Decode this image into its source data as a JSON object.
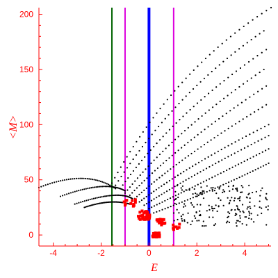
{
  "chart_data": {
    "type": "scatter",
    "xlabel": "E",
    "ylabel": "<M>",
    "xlim": [
      -4.6,
      5.1
    ],
    "ylim": [
      -10,
      206
    ],
    "grid": false,
    "x_ticks": [
      -4,
      -2,
      0,
      2,
      4
    ],
    "x_tick_labels": [
      "-4",
      "-2",
      "0",
      "2",
      "4"
    ],
    "y_ticks": [
      0,
      50,
      100,
      150,
      200
    ],
    "y_tick_labels": [
      "0",
      "50",
      "100",
      "150",
      "200"
    ],
    "vertical_lines": [
      {
        "x": -1.55,
        "color": "#006400",
        "width": 2
      },
      {
        "x": -1.0,
        "color": "#dd00dd",
        "width": 2
      },
      {
        "x": 0.0,
        "color": "#0000ff",
        "width": 4
      },
      {
        "x": 1.03,
        "color": "#dd00dd",
        "width": 2
      }
    ],
    "series": [
      {
        "color": "#000000",
        "point_size": 1.1,
        "curves": [
          {
            "start": [
              -4.6,
              43
            ],
            "mid": [
              -2.6,
              60
            ],
            "end": [
              -1.4,
              42
            ]
          },
          {
            "start": [
              -3.7,
              35
            ],
            "mid": [
              -1.8,
              50
            ],
            "end": [
              -1.0,
              40
            ]
          },
          {
            "start": [
              -3.1,
              28
            ],
            "mid": [
              -1.3,
              41
            ],
            "end": [
              -0.7,
              33
            ]
          },
          {
            "start": [
              -2.7,
              25
            ],
            "mid": [
              -1.6,
              33
            ],
            "end": [
              -0.8,
              28
            ]
          },
          {
            "start": [
              -1.55,
              47
            ],
            "mid": [
              1.0,
              150
            ],
            "end": [
              5.1,
              206
            ]
          },
          {
            "start": [
              -1.4,
              45
            ],
            "mid": [
              1.1,
              130
            ],
            "end": [
              4.8,
              185
            ]
          },
          {
            "start": [
              -1.2,
              42
            ],
            "mid": [
              1.0,
              110
            ],
            "end": [
              4.9,
              168
            ]
          },
          {
            "start": [
              -1.0,
              38
            ],
            "mid": [
              1.1,
              95
            ],
            "end": [
              4.8,
              150
            ]
          },
          {
            "start": [
              -0.8,
              36
            ],
            "mid": [
              1.2,
              82
            ],
            "end": [
              4.9,
              135
            ]
          },
          {
            "start": [
              -0.6,
              33
            ],
            "mid": [
              1.4,
              72
            ],
            "end": [
              4.9,
              118
            ]
          },
          {
            "start": [
              -0.4,
              30
            ],
            "mid": [
              1.6,
              63
            ],
            "end": [
              5.0,
              100
            ]
          },
          {
            "start": [
              -0.2,
              27
            ],
            "mid": [
              1.9,
              56
            ],
            "end": [
              5.0,
              90
            ]
          },
          {
            "start": [
              0.0,
              24
            ],
            "mid": [
              2.3,
              48
            ],
            "end": [
              5.0,
              78
            ]
          },
          {
            "start": [
              0.2,
              20
            ],
            "mid": [
              2.7,
              40
            ],
            "end": [
              5.0,
              65
            ]
          }
        ],
        "scatter_cloud": {
          "x_range": [
            1.0,
            5.0
          ],
          "y_range": [
            8,
            45
          ],
          "count": 190
        }
      },
      {
        "color": "#ff0000",
        "point_size": 1.6,
        "clusters": [
          {
            "center": [
              0.3,
              0
            ],
            "spread": [
              0.15,
              2
            ],
            "count": 35
          },
          {
            "center": [
              -0.2,
              18
            ],
            "spread": [
              0.25,
              4
            ],
            "count": 30
          },
          {
            "center": [
              0.5,
              12
            ],
            "spread": [
              0.2,
              3
            ],
            "count": 14
          },
          {
            "center": [
              -0.8,
              29
            ],
            "spread": [
              0.3,
              3
            ],
            "count": 12
          },
          {
            "center": [
              1.1,
              8
            ],
            "spread": [
              0.2,
              4
            ],
            "count": 8
          }
        ]
      }
    ]
  }
}
